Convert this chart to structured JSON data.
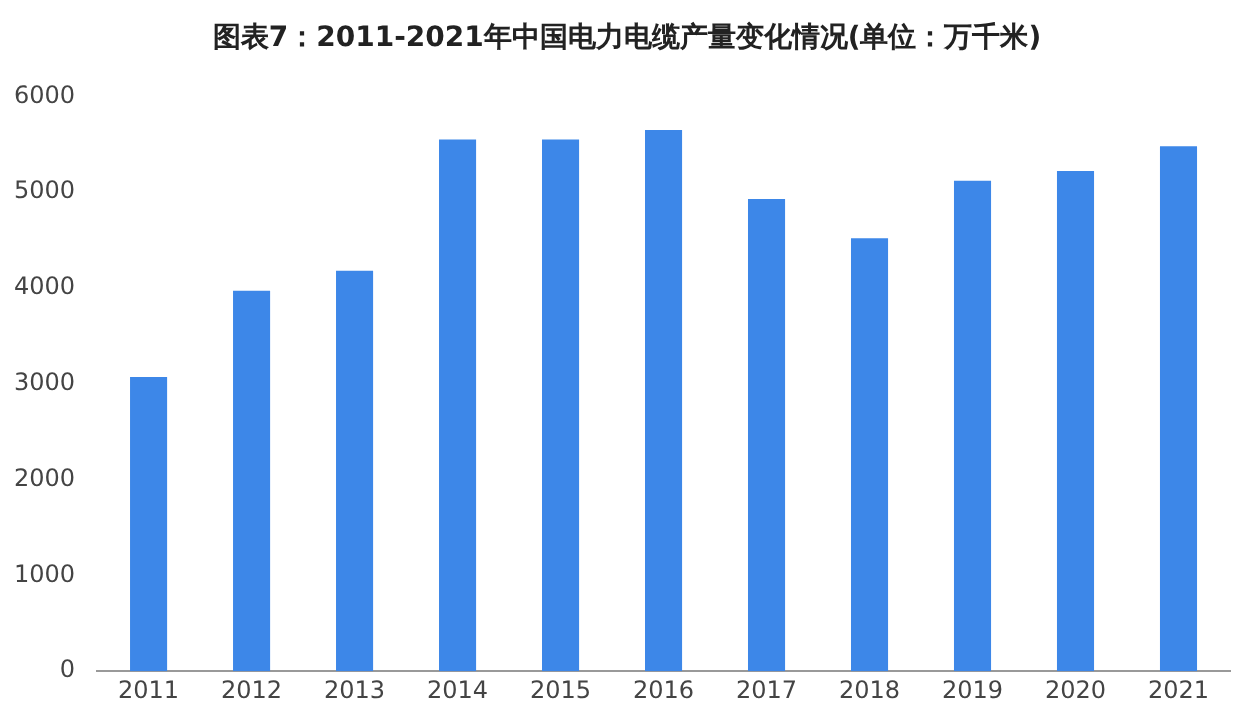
{
  "chart_data": {
    "type": "bar",
    "title": "图表7：2011-2021年中国电力电缆产量变化情况(单位：万千米)",
    "categories": [
      "2011",
      "2012",
      "2013",
      "2014",
      "2015",
      "2016",
      "2017",
      "2018",
      "2019",
      "2020",
      "2021"
    ],
    "values": [
      3070,
      3970,
      4180,
      5550,
      5550,
      5650,
      4930,
      4520,
      5120,
      5220,
      5480
    ],
    "color": "#3d87e8",
    "ylim": [
      0,
      6000
    ],
    "yticks": [
      0,
      1000,
      2000,
      3000,
      4000,
      5000,
      6000
    ],
    "grid": false,
    "legend": false
  }
}
